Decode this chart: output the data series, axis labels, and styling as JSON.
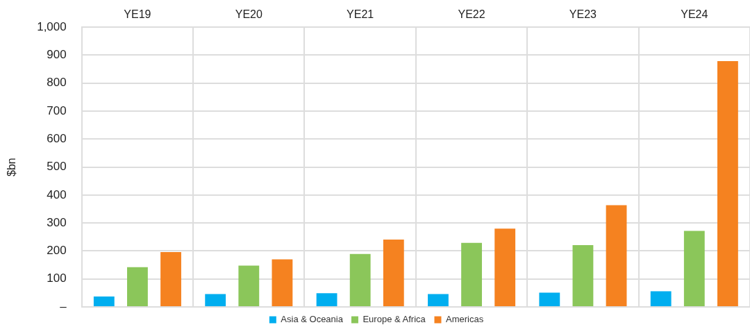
{
  "chart_data": {
    "type": "bar",
    "ylabel": "$bn",
    "categories": [
      "YE19",
      "YE20",
      "YE21",
      "YE22",
      "YE23",
      "YE24"
    ],
    "series": [
      {
        "name": "Asia & Oceania",
        "color": "#00aeef",
        "values": [
          37,
          46,
          49,
          46,
          51,
          56
        ]
      },
      {
        "name": "Europe & Africa",
        "color": "#8bc65a",
        "values": [
          142,
          148,
          189,
          229,
          221,
          272
        ]
      },
      {
        "name": "Americas",
        "color": "#f58220",
        "values": [
          196,
          170,
          241,
          280,
          364,
          879
        ]
      }
    ],
    "ylim": [
      0,
      1000
    ],
    "yticks": [
      {
        "value": 0,
        "label": "–"
      },
      100,
      200,
      300,
      400,
      500,
      600,
      700,
      800,
      900,
      {
        "value": 1000,
        "label": "1,000"
      }
    ],
    "grid": true,
    "legend": "bottom"
  }
}
